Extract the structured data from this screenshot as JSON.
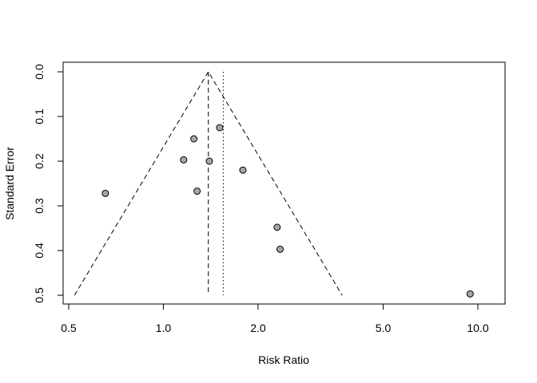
{
  "chart_data": {
    "type": "scatter",
    "subtype": "funnel",
    "title": "",
    "xlabel": "Risk Ratio",
    "ylabel": "Standard Error",
    "x_scale": "log",
    "xlim": [
      0.48,
      12.2
    ],
    "ylim": [
      0,
      0.5
    ],
    "y_reversed": true,
    "x_ticks": [
      0.5,
      1.0,
      2.0,
      5.0,
      10.0
    ],
    "x_tick_labels": [
      "0.5",
      "1.0",
      "2.0",
      "5.0",
      "10.0"
    ],
    "y_ticks": [
      0.0,
      0.1,
      0.2,
      0.3,
      0.4,
      0.5
    ],
    "y_tick_labels": [
      "0.0",
      "0.1",
      "0.2",
      "0.3",
      "0.4",
      "0.5"
    ],
    "points": [
      {
        "x": 1.51,
        "y": 0.125
      },
      {
        "x": 1.25,
        "y": 0.15
      },
      {
        "x": 1.16,
        "y": 0.197
      },
      {
        "x": 1.4,
        "y": 0.2
      },
      {
        "x": 1.79,
        "y": 0.22
      },
      {
        "x": 0.654,
        "y": 0.272
      },
      {
        "x": 1.28,
        "y": 0.267
      },
      {
        "x": 2.3,
        "y": 0.348
      },
      {
        "x": 2.35,
        "y": 0.397
      },
      {
        "x": 9.45,
        "y": 0.497
      }
    ],
    "summary_estimate": 1.39,
    "reference_line": 1.55,
    "funnel_se_max": 0.5,
    "point_fill": "#a6a6a6",
    "grid": false,
    "legend": "none"
  }
}
